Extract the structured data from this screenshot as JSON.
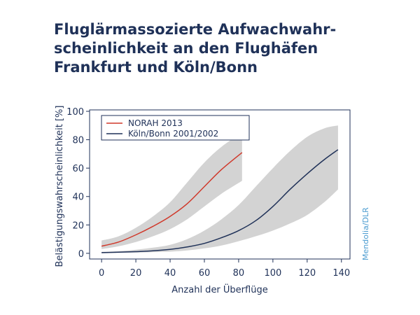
{
  "title_lines": [
    "Fluglärmassozierte Aufwachwahr-",
    "scheinlichkeit an den Flughäfen",
    "Frankfurt und Köln/Bonn"
  ],
  "credit": "Mendolia/DLR",
  "colors": {
    "title": "#1f3158",
    "axis": "#1f3158",
    "norah": "#d0392b",
    "koeln": "#1f3158",
    "band": "#d3d3d3",
    "credit": "#4a9bd0"
  },
  "chart_data": {
    "type": "line",
    "title": "Fluglärmassozierte Aufwachwahrscheinlichkeit an den Flughäfen Frankfurt und Köln/Bonn",
    "xlabel": "Anzahl der Überflüge",
    "ylabel": "Belästigungswahrscheinlichkeit [%]",
    "xlim": [
      -7,
      145
    ],
    "ylim": [
      -4,
      101
    ],
    "xticks": [
      0,
      20,
      40,
      60,
      80,
      100,
      120,
      140
    ],
    "yticks": [
      0,
      20,
      40,
      60,
      80,
      100
    ],
    "grid": false,
    "legend_position": "top-left",
    "series": [
      {
        "name": "NORAH 2013",
        "color": "#d0392b",
        "x": [
          0,
          10,
          20,
          30,
          40,
          50,
          60,
          70,
          82
        ],
        "y": [
          5,
          8,
          13,
          19,
          26,
          35,
          47,
          59,
          71
        ],
        "lower": [
          3,
          5,
          8,
          12,
          17,
          24,
          33,
          42,
          51
        ],
        "upper": [
          9,
          12,
          18,
          26,
          36,
          50,
          64,
          75,
          85
        ]
      },
      {
        "name": "Köln/Bonn 2001/2002",
        "color": "#1f3158",
        "x": [
          0,
          10,
          20,
          30,
          40,
          50,
          60,
          70,
          80,
          90,
          100,
          110,
          120,
          130,
          138
        ],
        "y": [
          0.5,
          0.8,
          1.2,
          1.8,
          2.8,
          4.5,
          7,
          11,
          16,
          23,
          33,
          45,
          56,
          66,
          73
        ],
        "lower": [
          0,
          0.3,
          0.5,
          0.8,
          1.2,
          2,
          3.5,
          5.5,
          8.5,
          12,
          16,
          21,
          27,
          36,
          45
        ],
        "upper": [
          1,
          1.5,
          2.5,
          4,
          6,
          10,
          16,
          24,
          34,
          47,
          60,
          72,
          82,
          88,
          90
        ]
      }
    ]
  }
}
